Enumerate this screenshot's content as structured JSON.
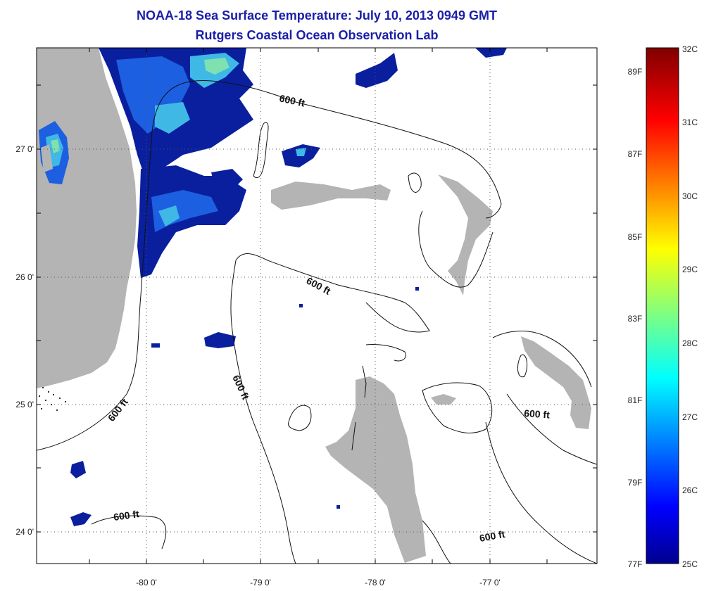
{
  "title": "NOAA-18 Sea Surface Temperature:  July 10, 2013 0949 GMT",
  "subtitle": "Rutgers Coastal Ocean Observation Lab",
  "x_ticks": [
    "-80 0'",
    "-79 0'",
    "-78 0'",
    "-77 0'"
  ],
  "y_ticks": [
    "27 0'",
    "26 0'",
    "25 0'",
    "24 0'"
  ],
  "contour_label": "600 ft",
  "colorbar": {
    "celsius_labels": [
      "32C",
      "31C",
      "30C",
      "29C",
      "28C",
      "27C",
      "26C",
      "25C"
    ],
    "fahrenheit_labels": [
      "89F",
      "87F",
      "85F",
      "83F",
      "81F",
      "79F",
      "77F"
    ],
    "min_c": 25,
    "max_c": 32,
    "colormap": "jet"
  },
  "colors": {
    "land": "#b4b4b4",
    "title": "#1a1fa8",
    "sst_dark_blue": "#0a1f9e",
    "sst_mid_blue": "#1c5fe0",
    "sst_cyan": "#3fb8e6",
    "sst_green": "#7fe0b0"
  }
}
